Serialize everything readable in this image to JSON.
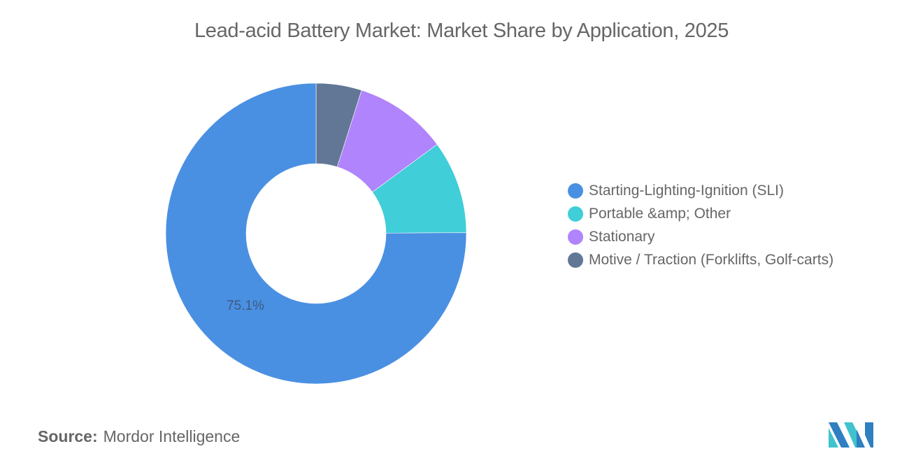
{
  "title": "Lead-acid Battery Market: Market Share by Application, 2025",
  "source": {
    "label": "Source:",
    "value": "Mordor Intelligence"
  },
  "logo": {
    "name": "mordor-intelligence-logo"
  },
  "chart_data": {
    "type": "pie",
    "variant": "donut",
    "title": "Lead-acid Battery Market: Market Share by Application, 2025",
    "categories": [
      "Starting-Lighting-Ignition (SLI)",
      "Portable &amp; Other",
      "Stationary",
      "Motive / Traction (Forklifts, Golf-carts)"
    ],
    "values": [
      75.1,
      10.0,
      10.0,
      4.9
    ],
    "unit": "%",
    "colors": [
      "#4a90e2",
      "#40ced8",
      "#b084fc",
      "#627796"
    ],
    "data_labels": [
      {
        "category": "Starting-Lighting-Ignition (SLI)",
        "text": "75.1%"
      }
    ],
    "legend_position": "right",
    "start_angle_deg": 0,
    "direction": "counterclockwise-from-top-for-last-series"
  },
  "legend": [
    {
      "label": "Starting-Lighting-Ignition (SLI)",
      "color": "#4a90e2"
    },
    {
      "label": "Portable &amp; Other",
      "color": "#40ced8"
    },
    {
      "label": "Stationary",
      "color": "#b084fc"
    },
    {
      "label": "Motive / Traction (Forklifts, Golf-carts)",
      "color": "#627796"
    }
  ],
  "labels": {
    "sli_pct": "75.1%"
  }
}
